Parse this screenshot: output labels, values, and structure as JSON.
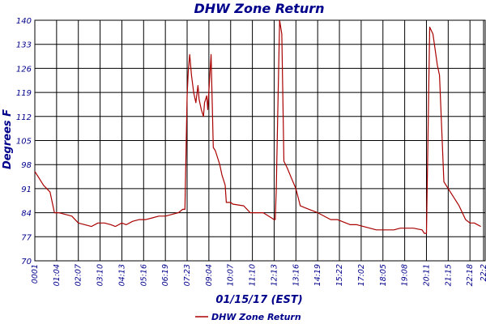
{
  "chart_data": {
    "type": "line",
    "title": "DHW Zone Return",
    "xlabel": "01/15/17 (EST)",
    "ylabel": "Degrees F",
    "ylim": [
      70,
      140
    ],
    "yticks": [
      70,
      77,
      84,
      91,
      98,
      105,
      112,
      119,
      126,
      133,
      140
    ],
    "xticks": [
      "0001",
      "01:04",
      "02:07",
      "03:10",
      "04:13",
      "05:16",
      "06:19",
      "07:23",
      "09:04",
      "10:07",
      "11:10",
      "12:13",
      "13:16",
      "14:19",
      "15:22",
      "17:02",
      "18:05",
      "19:08",
      "20:11",
      "21:15",
      "22:18",
      "22:2"
    ],
    "grid": true,
    "legend": "bottom",
    "colors": {
      "series": "#aa0000",
      "text": "#00008b",
      "grid": "#000000"
    },
    "series": [
      {
        "name": "DHW Zone Return",
        "x": [
          0.0,
          0.2,
          0.4,
          0.7,
          0.9,
          1.0,
          1.1,
          1.7,
          2.0,
          2.3,
          2.6,
          2.9,
          3.2,
          3.5,
          3.7,
          4.0,
          4.2,
          4.5,
          4.8,
          5.1,
          5.4,
          5.7,
          6.0,
          6.3,
          6.6,
          6.8,
          6.9,
          7.0,
          7.05,
          7.12,
          7.2,
          7.3,
          7.4,
          7.5,
          7.55,
          7.65,
          7.75,
          7.8,
          7.9,
          7.95,
          8.1,
          8.2,
          8.3,
          8.35,
          8.5,
          8.6,
          8.75,
          8.8,
          9.0,
          9.1,
          9.6,
          9.9,
          10.2,
          10.5,
          11.0,
          11.05,
          11.1,
          11.15,
          11.25,
          11.35,
          11.45,
          11.6,
          11.8,
          12.0,
          12.2,
          12.6,
          13.0,
          13.6,
          13.9,
          14.3,
          14.5,
          14.8,
          15.1,
          15.4,
          15.7,
          16.1,
          16.5,
          16.8,
          17.1,
          17.4,
          17.8,
          17.9,
          17.95,
          18.0,
          18.15,
          18.3,
          18.5,
          18.6,
          18.8,
          19.1,
          19.3,
          19.5,
          19.8,
          20.0,
          20.2,
          20.5
        ],
        "y": [
          96,
          94,
          92,
          90,
          84,
          84,
          84,
          83,
          81,
          80.5,
          80,
          81,
          81,
          80.5,
          80,
          81,
          80.5,
          81.5,
          82,
          82,
          82.5,
          83,
          83,
          83.5,
          84,
          85,
          85,
          118,
          125,
          130,
          124,
          119,
          116,
          121,
          117,
          114,
          112,
          116,
          118,
          114,
          130,
          103,
          102,
          101,
          98,
          95,
          92,
          87,
          87,
          86.5,
          86,
          84,
          84,
          84,
          82,
          82,
          91,
          108,
          140,
          136,
          99,
          97,
          94,
          91,
          86,
          85,
          84,
          82,
          82,
          81,
          80.5,
          80.5,
          80,
          79.5,
          79,
          79,
          79,
          79.5,
          79.5,
          79.5,
          79,
          78,
          78,
          78,
          138,
          136,
          127,
          124,
          93,
          90,
          88,
          86,
          82,
          81,
          81,
          80
        ]
      }
    ]
  }
}
